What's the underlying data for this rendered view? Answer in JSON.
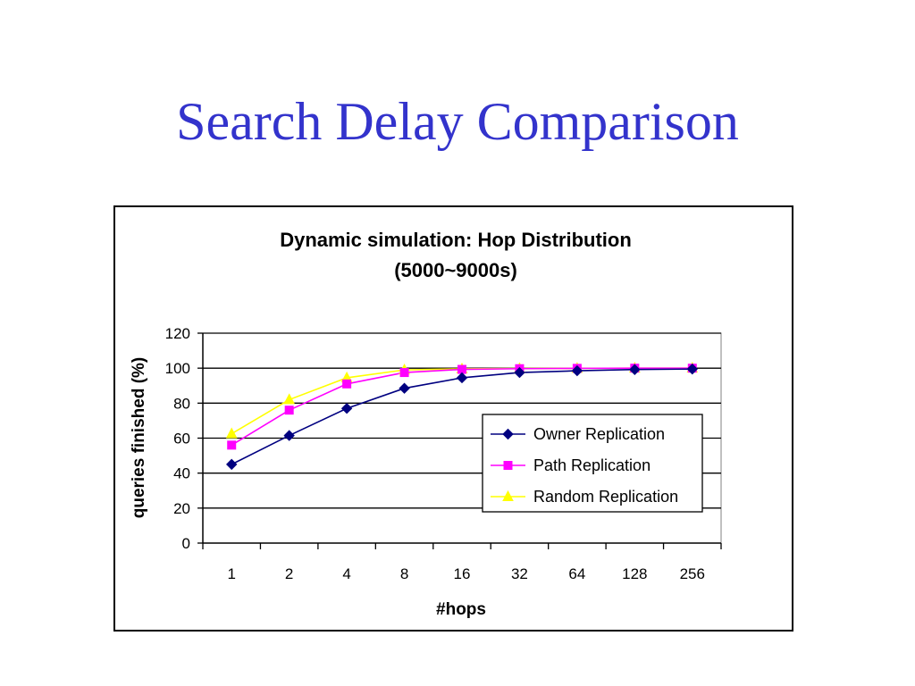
{
  "slide": {
    "title": "Search Delay Comparison"
  },
  "chart_data": {
    "type": "line",
    "title": "Dynamic simulation: Hop Distribution",
    "subtitle": "(5000~9000s)",
    "xlabel": "#hops",
    "ylabel": "queries finished (%)",
    "categories": [
      "1",
      "2",
      "4",
      "8",
      "16",
      "32",
      "64",
      "128",
      "256"
    ],
    "ylim": [
      0,
      120
    ],
    "yticks": [
      0,
      20,
      40,
      60,
      80,
      100,
      120
    ],
    "grid": "horizontal",
    "legend_position": "lower-right",
    "series": [
      {
        "name": "Owner Replication",
        "color": "#000080",
        "marker": "diamond",
        "values": [
          45,
          61.5,
          77,
          88.5,
          94.5,
          97.5,
          98.5,
          99.2,
          99.5
        ]
      },
      {
        "name": "Path Replication",
        "color": "#ff00ff",
        "marker": "square",
        "values": [
          56,
          76,
          91,
          97.5,
          99.3,
          99.7,
          99.9,
          100,
          100
        ]
      },
      {
        "name": "Random Replication",
        "color": "#ffff00",
        "marker": "triangle",
        "values": [
          62.5,
          82,
          94.5,
          99,
          99.6,
          99.8,
          99.9,
          100,
          100
        ]
      }
    ]
  }
}
